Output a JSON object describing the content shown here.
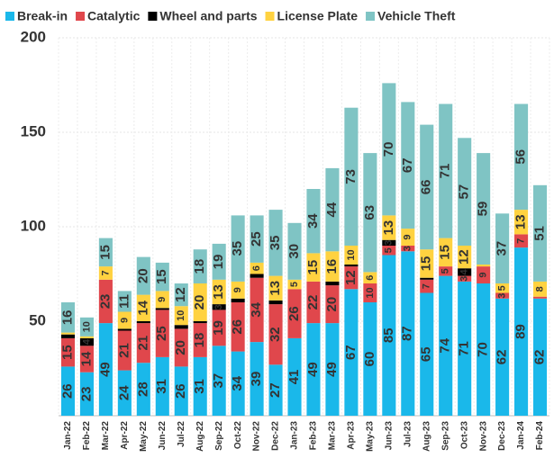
{
  "chart_data": {
    "type": "stacked-bar",
    "categories": [
      "Jan-22",
      "Feb-22",
      "Mar-22",
      "Apr-22",
      "May-22",
      "Jun-22",
      "Jul-22",
      "Aug-22",
      "Sep-22",
      "Oct-22",
      "Nov-22",
      "Dec-22",
      "Jan-23",
      "Feb-23",
      "Mar-23",
      "Apr-23",
      "May-23",
      "Jun-23",
      "Jul-23",
      "Aug-23",
      "Sep-23",
      "Oct-23",
      "Nov-23",
      "Dec-23",
      "Jan-24",
      "Feb-24"
    ],
    "series": [
      {
        "name": "Break-in",
        "color": "#1ab8ea",
        "values": [
          26,
          23,
          49,
          24,
          28,
          31,
          26,
          31,
          37,
          34,
          39,
          27,
          41,
          49,
          49,
          67,
          60,
          85,
          87,
          65,
          74,
          71,
          70,
          62,
          89,
          62
        ]
      },
      {
        "name": "Catalytic",
        "color": "#e0474c",
        "values": [
          15,
          14,
          23,
          21,
          21,
          25,
          20,
          18,
          19,
          26,
          34,
          32,
          26,
          22,
          20,
          12,
          10,
          5,
          3,
          7,
          5,
          3,
          9,
          3,
          7,
          1
        ]
      },
      {
        "name": "Wheel and parts",
        "color": "#000000",
        "values": [
          2,
          4,
          0,
          1,
          1,
          1,
          2,
          1,
          3,
          2,
          2,
          2,
          0,
          0,
          2,
          1,
          0,
          3,
          0,
          1,
          0,
          4,
          0,
          0,
          0,
          0
        ]
      },
      {
        "name": "License Plate",
        "color": "#ffd240",
        "values": [
          1,
          1,
          7,
          9,
          14,
          9,
          10,
          20,
          13,
          9,
          6,
          13,
          5,
          15,
          16,
          10,
          6,
          13,
          9,
          15,
          15,
          12,
          1,
          5,
          13,
          8
        ]
      },
      {
        "name": "Vehicle Theft",
        "color": "#7fc4c4",
        "values": [
          16,
          10,
          15,
          11,
          20,
          15,
          12,
          18,
          19,
          35,
          25,
          35,
          30,
          34,
          44,
          73,
          63,
          70,
          67,
          66,
          71,
          57,
          59,
          37,
          56,
          51
        ]
      }
    ],
    "ylim": [
      0,
      200
    ],
    "yticks": [
      50,
      100,
      150,
      200
    ],
    "grid": true
  }
}
